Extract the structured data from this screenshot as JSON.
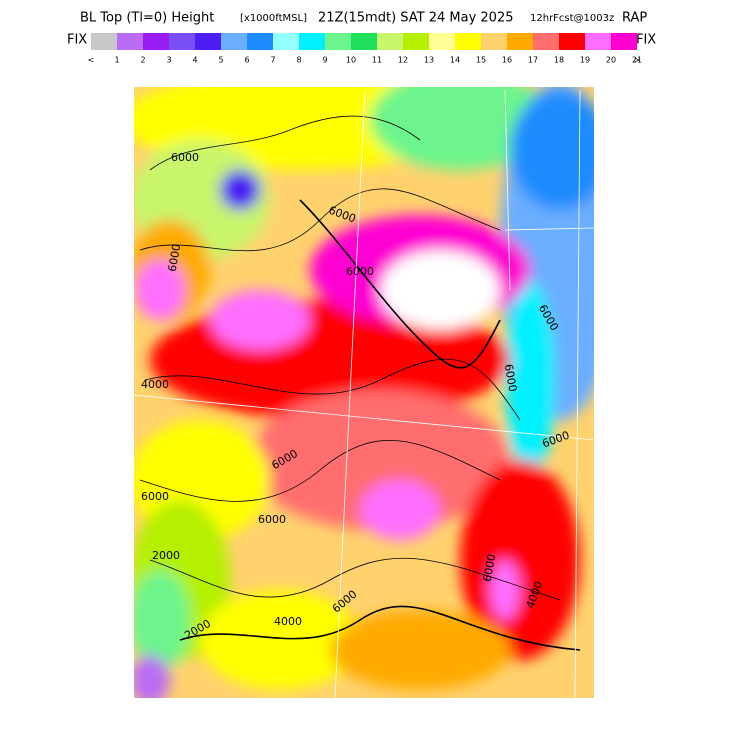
{
  "header": {
    "title": "BL Top (Tl=0) Height",
    "units": "[x1000ftMSL]",
    "valid": "21Z(15mdt) SAT 24 May 2025",
    "forecast": "12hrFcst@1003z",
    "model": "RAP"
  },
  "legend": {
    "left_label": "FIX",
    "right_label": "FIX",
    "under": "<",
    "over": ">",
    "colors": [
      "#c8c8c8",
      "#ba6cf5",
      "#9a1cf5",
      "#7a50f5",
      "#4c1ef5",
      "#6aaeff",
      "#1e8cff",
      "#96ffff",
      "#00f0ff",
      "#6cf58c",
      "#1ee05a",
      "#c8f56c",
      "#b4f000",
      "#ffff96",
      "#ffff00",
      "#ffd26e",
      "#ffaa00",
      "#ff6e6e",
      "#ff0000",
      "#ff6eff",
      "#ff00d2"
    ],
    "ticks": [
      "1",
      "2",
      "3",
      "4",
      "5",
      "6",
      "7",
      "8",
      "9",
      "10",
      "11",
      "12",
      "13",
      "14",
      "15",
      "16",
      "17",
      "18",
      "19",
      "20",
      "21"
    ]
  },
  "map": {
    "contour_labels": [
      "6000",
      "6000",
      "6000",
      "6000",
      "4000",
      "6000",
      "6000",
      "6000",
      "2000",
      "2000",
      "6000",
      "6000",
      "6000",
      "4000",
      "6000",
      "4000",
      "6000"
    ]
  }
}
